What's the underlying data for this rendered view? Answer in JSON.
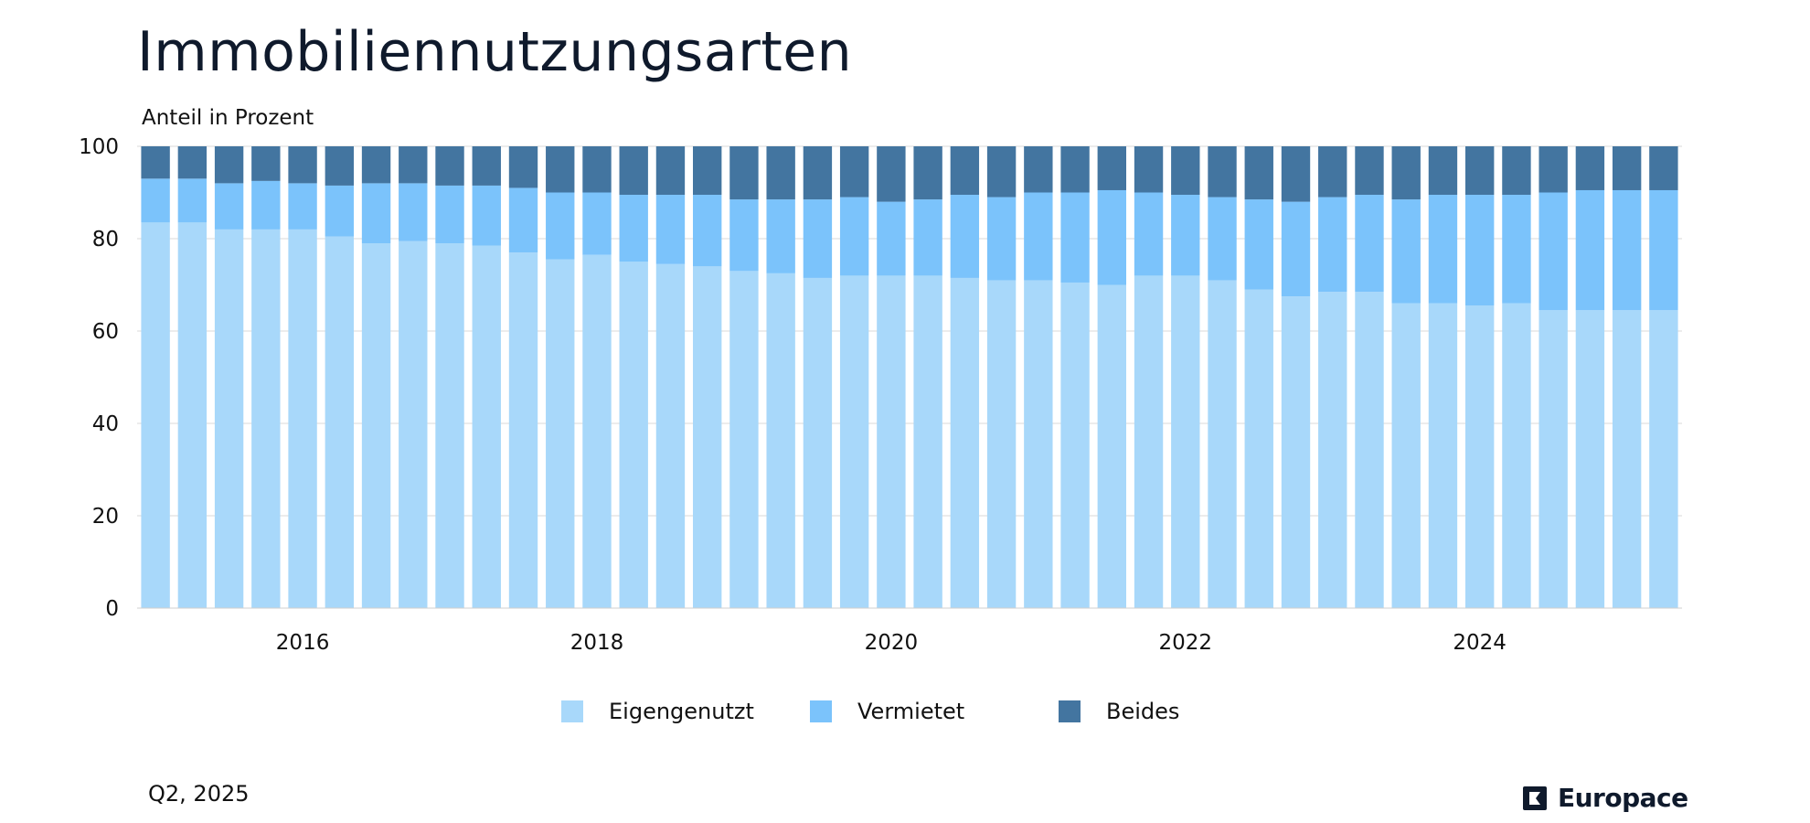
{
  "title": "Immobiliennutzungsarten",
  "subtitle": "Anteil in Prozent",
  "footnote": "Q2, 2025",
  "brand": "Europace",
  "chart_data": {
    "type": "bar",
    "stacked": true,
    "ylim": [
      0,
      100
    ],
    "yticks": [
      "0",
      "20",
      "40",
      "60",
      "80",
      "100"
    ],
    "xtick_labels": [
      {
        "label": "2016",
        "index": 4.5
      },
      {
        "label": "2018",
        "index": 12.5
      },
      {
        "label": "2020",
        "index": 20.5
      },
      {
        "label": "2022",
        "index": 28.5
      },
      {
        "label": "2024",
        "index": 36.5
      }
    ],
    "categories": [
      "Q1 2015",
      "Q2 2015",
      "Q3 2015",
      "Q4 2015",
      "Q1 2016",
      "Q2 2016",
      "Q3 2016",
      "Q4 2016",
      "Q1 2017",
      "Q2 2017",
      "Q3 2017",
      "Q4 2017",
      "Q1 2018",
      "Q2 2018",
      "Q3 2018",
      "Q4 2018",
      "Q1 2019",
      "Q2 2019",
      "Q3 2019",
      "Q4 2019",
      "Q1 2020",
      "Q2 2020",
      "Q3 2020",
      "Q4 2020",
      "Q1 2021",
      "Q2 2021",
      "Q3 2021",
      "Q4 2021",
      "Q1 2022",
      "Q2 2022",
      "Q3 2022",
      "Q4 2022",
      "Q1 2023",
      "Q2 2023",
      "Q3 2023",
      "Q4 2023",
      "Q1 2024",
      "Q2 2024",
      "Q3 2024",
      "Q4 2024",
      "Q1 2025",
      "Q2 2025"
    ],
    "series": [
      {
        "name": "Eigengenutzt",
        "color": "#a8d8fa",
        "values": [
          83.5,
          83.5,
          82,
          82,
          82,
          80.5,
          79,
          79.5,
          79,
          78.5,
          77,
          75.5,
          76.5,
          75,
          74.5,
          74,
          73,
          72.5,
          71.5,
          72,
          72,
          72,
          71.5,
          71,
          71,
          70.5,
          70,
          72,
          72,
          71,
          69,
          67.5,
          68.5,
          68.5,
          66,
          66,
          65.5,
          66,
          64.5,
          64.5,
          64.5,
          64.5
        ]
      },
      {
        "name": "Vermietet",
        "color": "#7bc3fb",
        "values": [
          9.5,
          9.5,
          10,
          10.5,
          10,
          11,
          13,
          12.5,
          12.5,
          13,
          14,
          14.5,
          13.5,
          14.5,
          15,
          15.5,
          15.5,
          16,
          17,
          17,
          16,
          16.5,
          18,
          18,
          19,
          19.5,
          20.5,
          18,
          17.5,
          18,
          19.5,
          20.5,
          20.5,
          21,
          22.5,
          23.5,
          24,
          23.5,
          25.5,
          26,
          26,
          26
        ]
      },
      {
        "name": "Beides",
        "color": "#4375a0",
        "values": [
          7,
          7,
          8,
          7.5,
          8,
          8.5,
          8,
          8,
          8.5,
          8.5,
          9,
          10,
          10,
          10.5,
          10.5,
          10.5,
          11.5,
          11.5,
          11.5,
          11,
          12,
          11.5,
          10.5,
          11,
          10,
          10,
          9.5,
          10,
          10.5,
          11,
          11.5,
          12,
          11,
          10.5,
          11.5,
          10.5,
          10.5,
          10.5,
          10,
          9.5,
          9.5,
          9.5
        ]
      }
    ]
  }
}
